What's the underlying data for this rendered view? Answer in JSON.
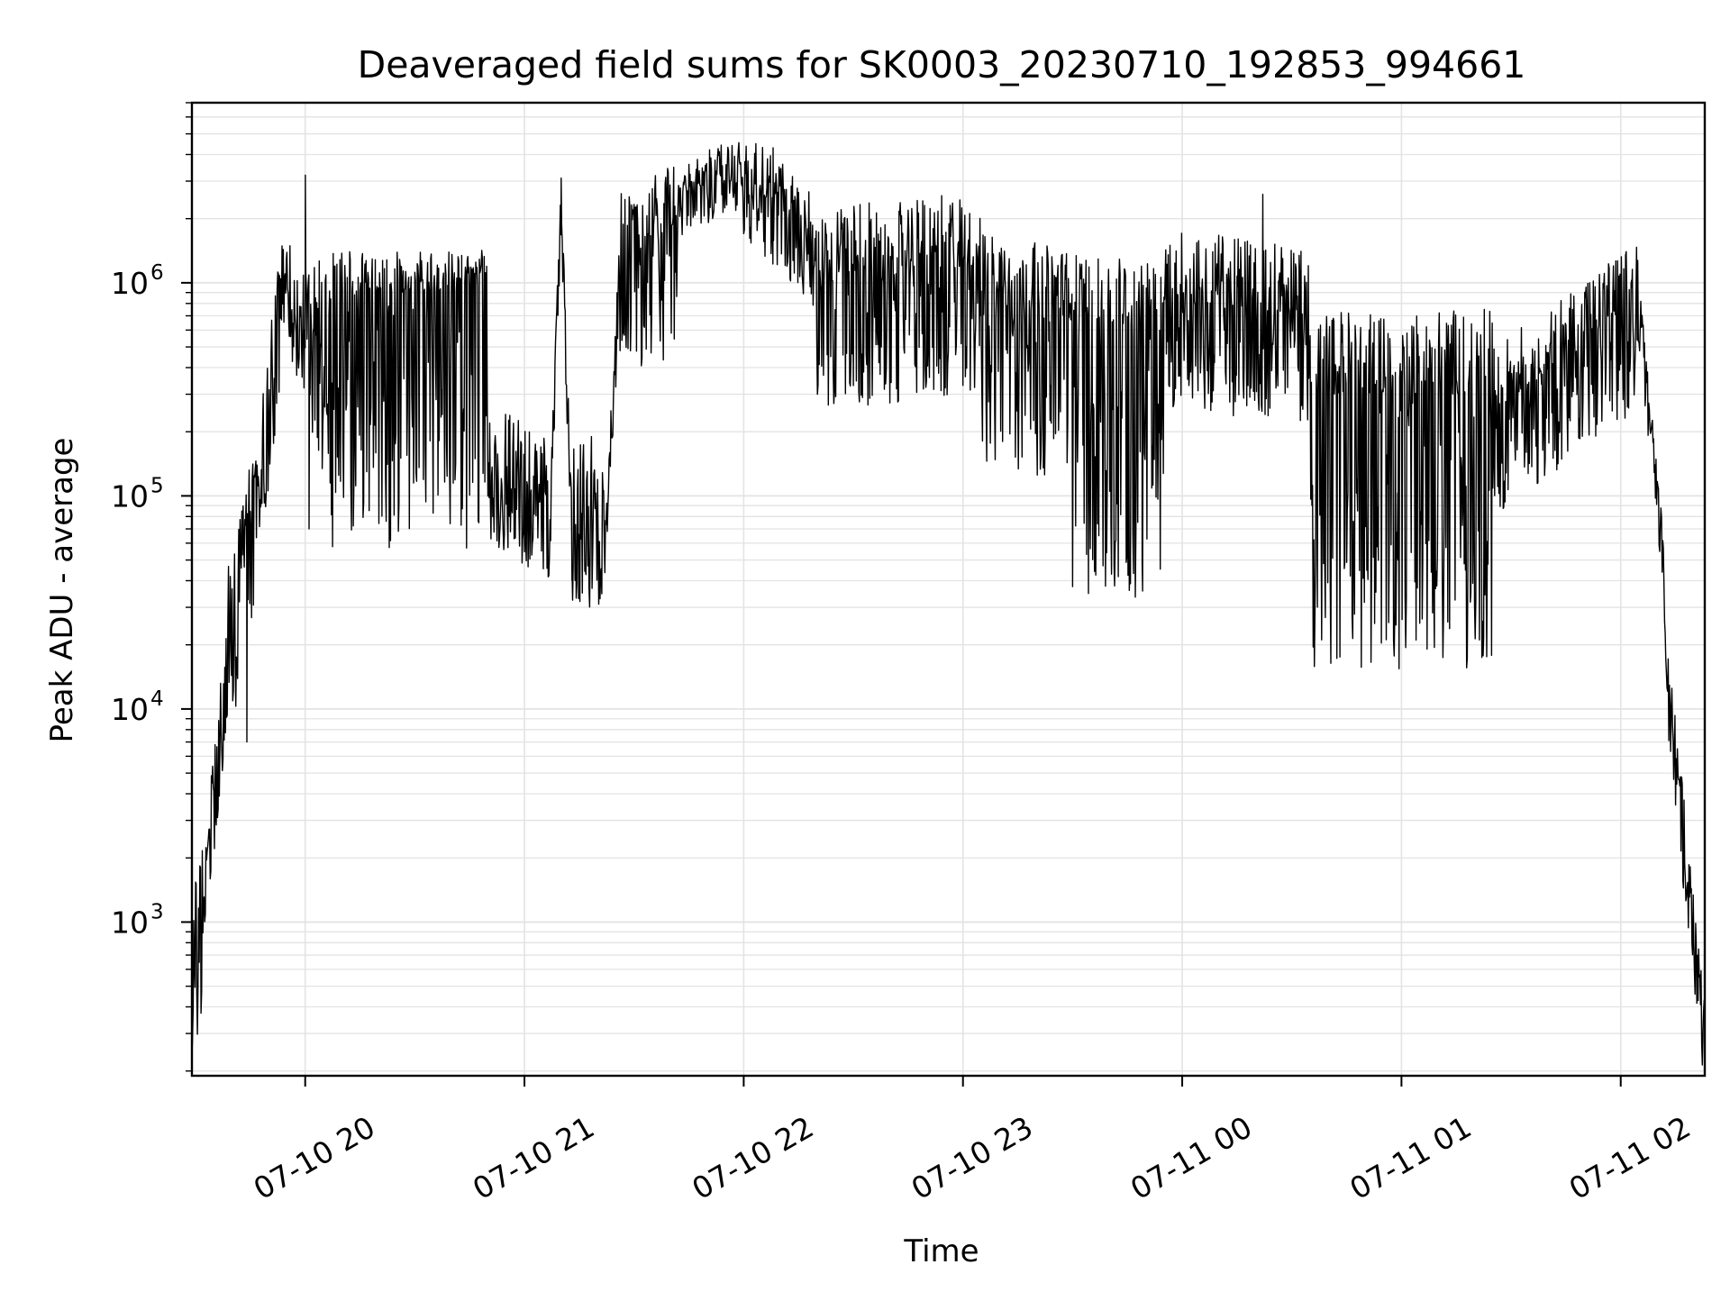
{
  "chart_data": {
    "type": "line",
    "title": "Deaveraged field sums for SK0003_20230710_192853_994661",
    "xlabel": "Time",
    "ylabel": "Peak ADU - average",
    "y_scale": "log",
    "grid": true,
    "line_color": "#000000",
    "grid_color": "#e3e3e3",
    "x_range": [
      "2023-07-10 19:29",
      "2023-07-11 02:23"
    ],
    "y_range": [
      190,
      7000000
    ],
    "x_ticks": [
      {
        "t": "2023-07-10 20:00",
        "label": "07-10 20"
      },
      {
        "t": "2023-07-10 21:00",
        "label": "07-10 21"
      },
      {
        "t": "2023-07-10 22:00",
        "label": "07-10 22"
      },
      {
        "t": "2023-07-10 23:00",
        "label": "07-10 23"
      },
      {
        "t": "2023-07-11 00:00",
        "label": "07-11 00"
      },
      {
        "t": "2023-07-11 01:00",
        "label": "07-11 01"
      },
      {
        "t": "2023-07-11 02:00",
        "label": "07-11 02"
      }
    ],
    "y_ticks": [
      {
        "value": 1000,
        "base": "10",
        "exp": "3"
      },
      {
        "value": 10000,
        "base": "10",
        "exp": "4"
      },
      {
        "value": 100000,
        "base": "10",
        "exp": "5"
      },
      {
        "value": 1000000,
        "base": "10",
        "exp": "6"
      }
    ],
    "segments": [
      {
        "start": "2023-07-10 19:29",
        "end": "2023-07-10 19:32",
        "y_start": 700,
        "y_end": 1200,
        "noise_low": 0.5,
        "noise_high": 0.3
      },
      {
        "start": "2023-07-10 19:32",
        "end": "2023-07-10 19:39",
        "y_start": 1200,
        "y_end": 20000,
        "noise_low": 0.3,
        "noise_high": 0.2
      },
      {
        "start": "2023-07-10 19:39",
        "end": "2023-07-10 19:45",
        "y_start": 20000,
        "y_end": 60000,
        "noise_low": 0.5,
        "noise_high": 0.4
      },
      {
        "start": "2023-07-10 19:45",
        "end": "2023-07-10 19:54",
        "y_start": 60000,
        "y_end": 900000,
        "noise_low": 0.4,
        "noise_high": 0.3
      },
      {
        "start": "2023-07-10 19:54",
        "end": "2023-07-10 20:02",
        "y_start": 900000,
        "y_end": 550000,
        "noise_low": 0.3,
        "noise_high": 0.3
      },
      {
        "start": "2023-07-10 20:02",
        "end": "2023-07-10 20:07",
        "y_start": 550000,
        "y_end": 450000,
        "noise_low": 0.6,
        "noise_high": 0.4
      },
      {
        "start": "2023-07-10 20:07",
        "end": "2023-07-10 20:50",
        "y_start": 900000,
        "y_end": 900000,
        "noise_low": 1.2,
        "noise_high": 0.2
      },
      {
        "start": "2023-07-10 20:50",
        "end": "2023-07-10 21:07",
        "y_start": 120000,
        "y_end": 80000,
        "noise_low": 0.3,
        "noise_high": 0.4
      },
      {
        "start": "2023-07-10 21:07",
        "end": "2023-07-10 21:10",
        "y_start": 80000,
        "y_end": 2500000,
        "noise_low": 0.2,
        "noise_high": 0.1
      },
      {
        "start": "2023-07-10 21:10",
        "end": "2023-07-10 21:13",
        "y_start": 2500000,
        "y_end": 70000,
        "noise_low": 0.2,
        "noise_high": 0.1
      },
      {
        "start": "2023-07-10 21:13",
        "end": "2023-07-10 21:22",
        "y_start": 60000,
        "y_end": 60000,
        "noise_low": 0.3,
        "noise_high": 0.5
      },
      {
        "start": "2023-07-10 21:22",
        "end": "2023-07-10 21:26",
        "y_start": 60000,
        "y_end": 1000000,
        "noise_low": 0.2,
        "noise_high": 0.2
      },
      {
        "start": "2023-07-10 21:26",
        "end": "2023-07-10 21:42",
        "y_start": 1500000,
        "y_end": 1800000,
        "noise_low": 0.6,
        "noise_high": 0.3
      },
      {
        "start": "2023-07-10 21:42",
        "end": "2023-07-10 22:00",
        "y_start": 2500000,
        "y_end": 3600000,
        "noise_low": 0.2,
        "noise_high": 0.15
      },
      {
        "start": "2023-07-10 22:00",
        "end": "2023-07-10 22:20",
        "y_start": 3000000,
        "y_end": 1500000,
        "noise_low": 0.3,
        "noise_high": 0.25
      },
      {
        "start": "2023-07-10 22:20",
        "end": "2023-07-10 23:05",
        "y_start": 1000000,
        "y_end": 1200000,
        "noise_low": 0.6,
        "noise_high": 0.35
      },
      {
        "start": "2023-07-10 23:05",
        "end": "2023-07-10 23:30",
        "y_start": 900000,
        "y_end": 700000,
        "noise_low": 0.8,
        "noise_high": 0.3
      },
      {
        "start": "2023-07-10 23:30",
        "end": "2023-07-10 23:55",
        "y_start": 700000,
        "y_end": 600000,
        "noise_low": 1.3,
        "noise_high": 0.3
      },
      {
        "start": "2023-07-10 23:55",
        "end": "2023-07-11 00:35",
        "y_start": 800000,
        "y_end": 700000,
        "noise_low": 0.5,
        "noise_high": 0.35
      },
      {
        "start": "2023-07-11 00:35",
        "end": "2023-07-11 01:25",
        "y_start": 300000,
        "y_end": 300000,
        "noise_low": 1.3,
        "noise_high": 0.4
      },
      {
        "start": "2023-07-11 01:25",
        "end": "2023-07-11 02:05",
        "y_start": 250000,
        "y_end": 800000,
        "noise_low": 0.5,
        "noise_high": 0.3
      },
      {
        "start": "2023-07-11 02:05",
        "end": "2023-07-11 02:12",
        "y_start": 800000,
        "y_end": 50000,
        "noise_low": 0.2,
        "noise_high": 0.1
      },
      {
        "start": "2023-07-11 02:12",
        "end": "2023-07-11 02:23",
        "y_start": 20000,
        "y_end": 320,
        "noise_low": 0.3,
        "noise_high": 0.15
      }
    ],
    "spikes": [
      {
        "t": "2023-07-10 19:44",
        "value": 7000
      },
      {
        "t": "2023-07-10 20:00",
        "value": 3200000
      },
      {
        "t": "2023-07-10 20:01",
        "value": 70000
      },
      {
        "t": "2023-07-10 21:10",
        "value": 3100000
      },
      {
        "t": "2023-07-10 21:13",
        "value": 42000
      },
      {
        "t": "2023-07-10 22:08",
        "value": 4300000
      },
      {
        "t": "2023-07-10 23:05",
        "value": 500000
      },
      {
        "t": "2023-07-10 23:49",
        "value": 48000
      },
      {
        "t": "2023-07-11 00:22",
        "value": 2600000
      },
      {
        "t": "2023-07-11 00:59",
        "value": 50000
      },
      {
        "t": "2023-07-11 02:03",
        "value": 950000
      },
      {
        "t": "2023-07-11 02:23",
        "value": 310
      }
    ]
  }
}
